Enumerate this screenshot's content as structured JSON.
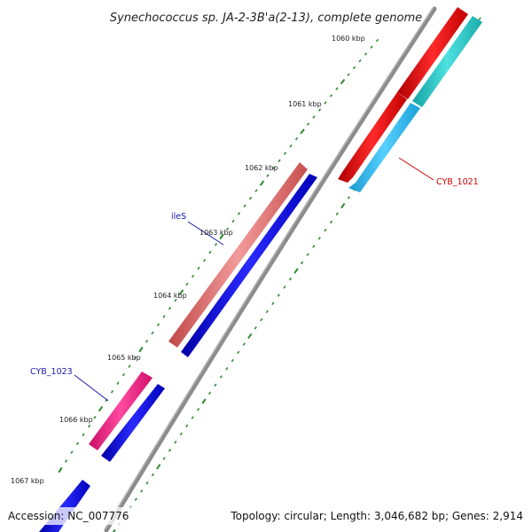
{
  "title": "Synechococcus sp. JA-2-3B'a(2-13), complete genome",
  "footer": {
    "accession": "Accession: NC_007776",
    "summary": "Topology: circular; Length: 3,046,682 bp; Genes: 2,914"
  },
  "scale_labels": [
    "1060 kbp",
    "1061 kbp",
    "1062 kbp",
    "1063 kbp",
    "1064 kbp",
    "1065 kbp",
    "1066 kbp",
    "1067 kbp"
  ],
  "gene_labels": [
    {
      "id": "cyb1021",
      "text": "CYB_1021",
      "color": "#cc0000"
    },
    {
      "id": "iles",
      "text": "ileS",
      "color": "#1a1aaa"
    },
    {
      "id": "cyb1023",
      "text": "CYB_1023",
      "color": "#1a1aaa"
    }
  ],
  "colors": {
    "backbone": "#8c8c8c",
    "tick": "#2f8a2f",
    "red_gene": "#ff0000",
    "cyan_gene": "#22cccc",
    "sky_gene": "#22bbee",
    "salmon_gene": "#e06c6c",
    "magenta_gene": "#ee1a80",
    "blue_gene": "#0000dd"
  }
}
